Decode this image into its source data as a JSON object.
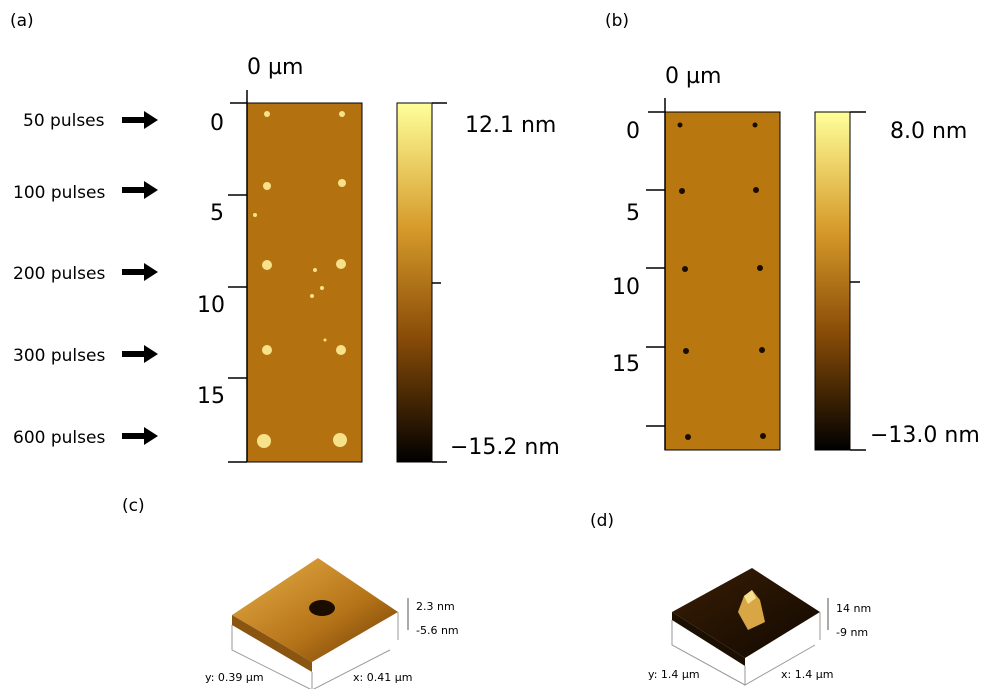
{
  "panels": [
    {
      "label": "(a)",
      "axis_unit": "0 µm",
      "ticks": [
        "0",
        "5",
        "10",
        "15"
      ],
      "colorbar_max": "12.1 nm",
      "colorbar_min": "−15.2 nm",
      "rows": [
        "50 pulses",
        "100 pulses",
        "200 pulses",
        "300 pulses",
        "600 pulses"
      ]
    },
    {
      "label": "(b)",
      "axis_unit": "0 µm",
      "ticks": [
        "0",
        "5",
        "10",
        "15"
      ],
      "colorbar_max": "8.0 nm",
      "colorbar_min": "−13.0 nm"
    },
    {
      "label": "(c)",
      "z_max": "2.3 nm",
      "z_min": "-5.6 nm",
      "y_size": "y: 0.39 µm",
      "x_size": "x: 0.41 µm"
    },
    {
      "label": "(d)",
      "z_max": "14 nm",
      "z_min": "-9 nm",
      "y_size": "y: 1.4 µm",
      "x_size": "x: 1.4 µm"
    }
  ]
}
